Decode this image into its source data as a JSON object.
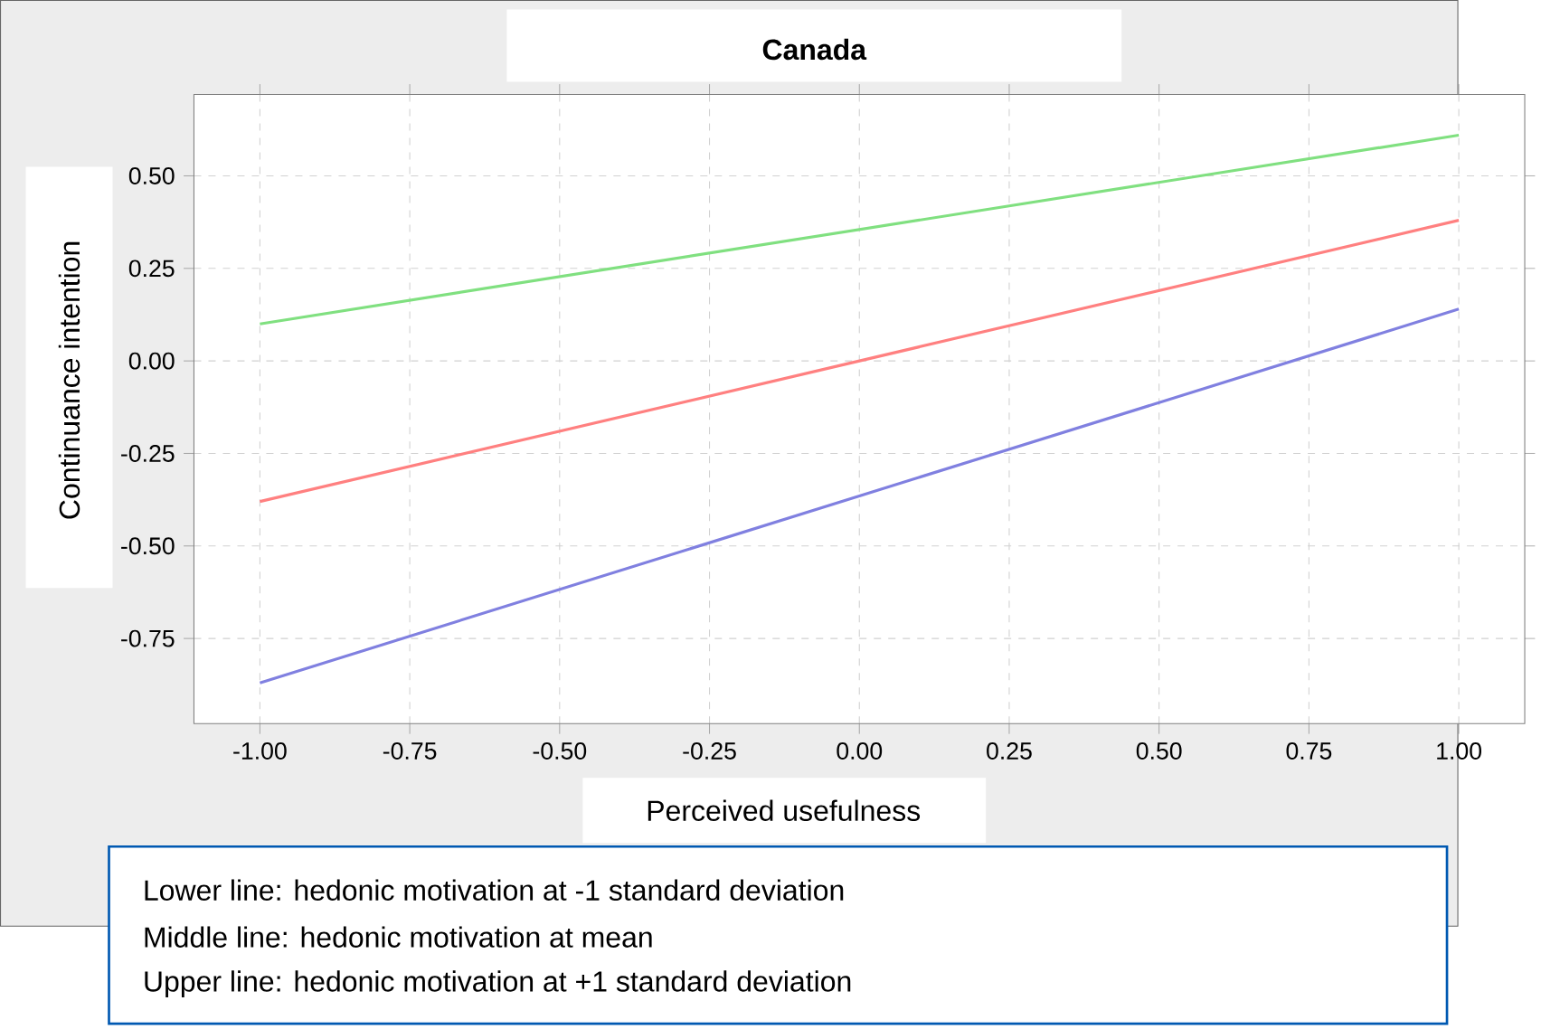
{
  "chart_data": {
    "type": "line",
    "title": "Canada",
    "xlabel": "Perceived usefulness",
    "ylabel": "Continuance intention",
    "x": [
      -1,
      1
    ],
    "series": [
      {
        "color": "#8080e0",
        "values": [
          -0.87,
          0.14
        ]
      },
      {
        "color": "#ff8080",
        "values": [
          -0.38,
          0.38
        ]
      },
      {
        "color": "#80e080",
        "values": [
          0.1,
          0.61
        ]
      }
    ],
    "xlim": [
      -1.11,
      1.11
    ],
    "ylim": [
      -0.98,
      0.72
    ],
    "xticks": [
      {
        "value": -1,
        "label": "-1.00"
      },
      {
        "value": -0.75,
        "label": "-0.75"
      },
      {
        "value": -0.5,
        "label": "-0.50"
      },
      {
        "value": -0.25,
        "label": "-0.25"
      },
      {
        "value": 0,
        "label": "0.00"
      },
      {
        "value": 0.25,
        "label": "0.25"
      },
      {
        "value": 0.5,
        "label": "0.50"
      },
      {
        "value": 0.75,
        "label": "0.75"
      },
      {
        "value": 1,
        "label": "1.00"
      }
    ],
    "yticks": [
      {
        "value": -0.75,
        "label": "-0.75"
      },
      {
        "value": -0.5,
        "label": "-0.50"
      },
      {
        "value": -0.25,
        "label": "-0.25"
      },
      {
        "value": 0,
        "label": "0.00"
      },
      {
        "value": 0.25,
        "label": "0.25"
      },
      {
        "value": 0.5,
        "label": "0.50"
      }
    ],
    "grid": true,
    "annotations": [
      "Lower line: hedonic motivation at -1 standard deviation",
      "Middle line: hedonic motivation at  mean",
      "Upper line: hedonic motivation at +1 standard deviation"
    ]
  }
}
